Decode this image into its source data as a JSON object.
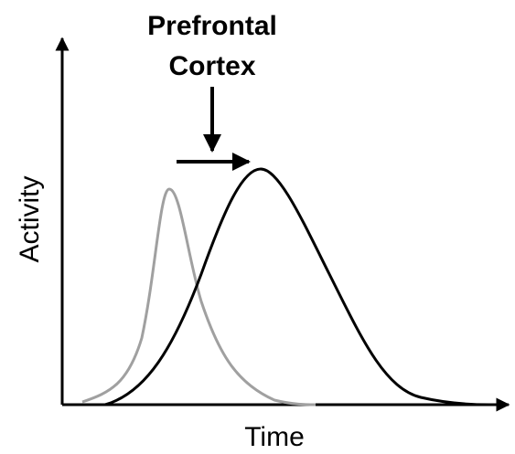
{
  "annotation": {
    "lines": [
      "Prefrontal",
      "Cortex"
    ]
  },
  "axes": {
    "y_label": "Activity",
    "x_label": "Time"
  }
}
